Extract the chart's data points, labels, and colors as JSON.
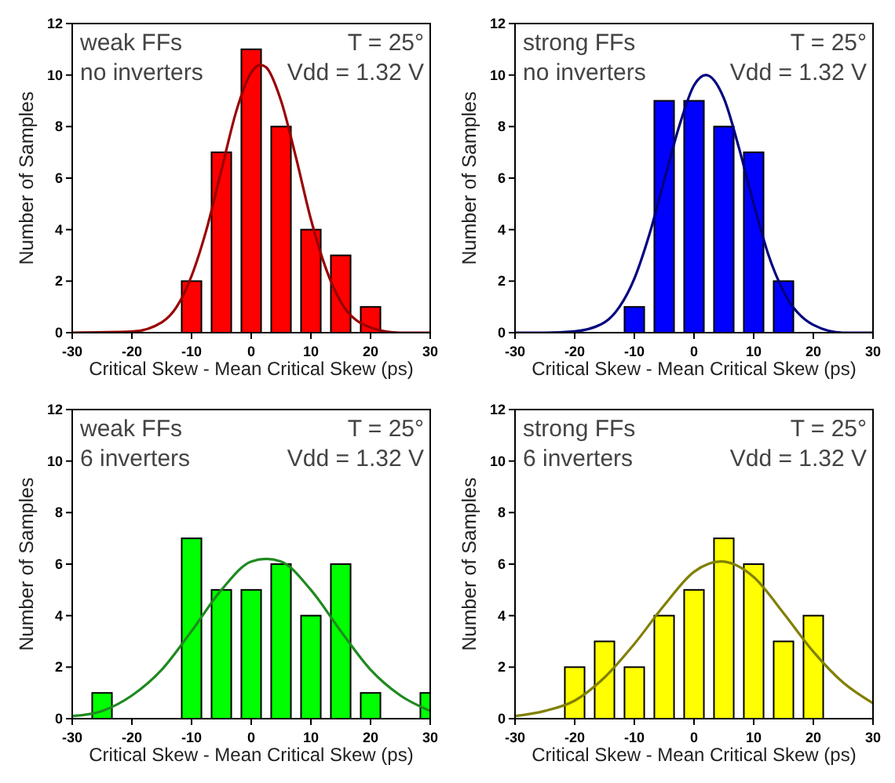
{
  "chart_data": [
    {
      "type": "bar",
      "xlabel": "Critical Skew - Mean Critical Skew (ps)",
      "ylabel": "Number of Samples",
      "annotations": [
        "weak FFs",
        "no inverters",
        "T = 25°",
        "Vdd = 1.32 V"
      ],
      "xlim": [
        -30,
        30
      ],
      "xticks": [
        -30,
        -20,
        -10,
        0,
        10,
        20,
        30
      ],
      "ylim": [
        0,
        12
      ],
      "yticks": [
        0,
        2,
        4,
        6,
        8,
        10,
        12
      ],
      "grid": false,
      "series": [
        {
          "color": "#ff0000",
          "x": [
            -10,
            -5,
            0,
            5,
            10,
            15,
            20
          ],
          "values": [
            2,
            7,
            11,
            8,
            4,
            3,
            1
          ]
        },
        {
          "type": "line",
          "color": "#990000",
          "x": [
            -30,
            -20,
            -15,
            -12.5,
            -10,
            -7.5,
            -5,
            -2.5,
            0,
            1.5,
            2.5,
            5,
            7.5,
            10,
            12.5,
            15,
            20,
            25,
            30
          ],
          "values": [
            0,
            0.04,
            0.4,
            1.0,
            2.2,
            4.0,
            6.3,
            8.6,
            10.1,
            10.4,
            10.3,
            9.0,
            6.8,
            4.4,
            2.5,
            1.2,
            0.2,
            0,
            0
          ]
        }
      ]
    },
    {
      "type": "bar",
      "xlabel": "Critical Skew - Mean Critical Skew (ps)",
      "ylabel": "Number of Samples",
      "annotations": [
        "strong FFs",
        "no inverters",
        "T = 25°",
        "Vdd = 1.32 V"
      ],
      "xlim": [
        -30,
        30
      ],
      "xticks": [
        -30,
        -20,
        -10,
        0,
        10,
        20,
        30
      ],
      "ylim": [
        0,
        12
      ],
      "yticks": [
        0,
        2,
        4,
        6,
        8,
        10,
        12
      ],
      "grid": false,
      "series": [
        {
          "color": "#0000ff",
          "x": [
            -10,
            -5,
            0,
            5,
            10,
            15
          ],
          "values": [
            1,
            9,
            9,
            8,
            7,
            2
          ]
        },
        {
          "type": "line",
          "color": "#000080",
          "x": [
            -30,
            -25,
            -20,
            -15,
            -12.5,
            -10,
            -7.5,
            -5,
            -2.5,
            0,
            2,
            5,
            7.5,
            10,
            12.5,
            15,
            20,
            25,
            30
          ],
          "values": [
            0,
            0,
            0.05,
            0.4,
            1.0,
            2.1,
            3.8,
            5.9,
            8.0,
            9.6,
            10,
            9.1,
            7.2,
            5.0,
            3.0,
            1.6,
            0.3,
            0,
            0
          ]
        }
      ]
    },
    {
      "type": "bar",
      "xlabel": "Critical Skew - Mean Critical Skew (ps)",
      "ylabel": "Number of Samples",
      "annotations": [
        "weak FFs",
        "6 inverters",
        "T = 25°",
        "Vdd = 1.32 V"
      ],
      "xlim": [
        -30,
        30
      ],
      "xticks": [
        -30,
        -20,
        -10,
        0,
        10,
        20,
        30
      ],
      "ylim": [
        0,
        12
      ],
      "yticks": [
        0,
        2,
        4,
        6,
        8,
        10,
        12
      ],
      "grid": false,
      "series": [
        {
          "color": "#00ff00",
          "x": [
            -25,
            -10,
            -5,
            0,
            5,
            10,
            15,
            20,
            30
          ],
          "values": [
            1,
            7,
            5,
            5,
            6,
            4,
            6,
            1,
            1
          ]
        },
        {
          "type": "line",
          "color": "#1f8a1f",
          "x": [
            -30,
            -25,
            -20,
            -15,
            -10,
            -5,
            0,
            2.5,
            5,
            10,
            15,
            20,
            25,
            30
          ],
          "values": [
            0.1,
            0.3,
            0.9,
            1.9,
            3.4,
            5.0,
            6.1,
            6.2,
            6.1,
            5.0,
            3.4,
            1.9,
            0.9,
            0.3
          ]
        }
      ]
    },
    {
      "type": "bar",
      "xlabel": "Critical Skew - Mean Critical Skew (ps)",
      "ylabel": "Number of Samples",
      "annotations": [
        "strong FFs",
        "6 inverters",
        "T = 25°",
        "Vdd = 1.32 V"
      ],
      "xlim": [
        -30,
        30
      ],
      "xticks": [
        -30,
        -20,
        -10,
        0,
        10,
        20,
        30
      ],
      "ylim": [
        0,
        12
      ],
      "yticks": [
        0,
        2,
        4,
        6,
        8,
        10,
        12
      ],
      "grid": false,
      "series": [
        {
          "color": "#ffff00",
          "x": [
            -20,
            -15,
            -10,
            -5,
            0,
            5,
            10,
            15,
            20
          ],
          "values": [
            2,
            3,
            2,
            4,
            5,
            7,
            6,
            3,
            4
          ]
        },
        {
          "type": "line",
          "color": "#808000",
          "x": [
            -30,
            -25,
            -20,
            -15,
            -10,
            -5,
            0,
            4.5,
            10,
            15,
            20,
            25,
            30
          ],
          "values": [
            0.1,
            0.3,
            0.7,
            1.6,
            2.9,
            4.4,
            5.7,
            6.1,
            5.5,
            4.1,
            2.6,
            1.4,
            0.6
          ]
        }
      ]
    }
  ]
}
